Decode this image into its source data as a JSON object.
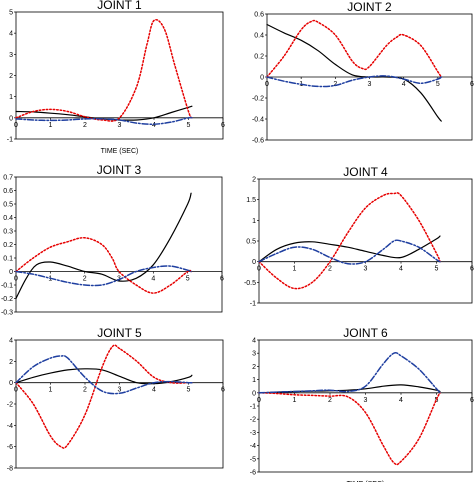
{
  "chart_data": [
    {
      "type": "line",
      "title": "JOINT 1",
      "xlabel": "TIME (SEC)",
      "ylabel": "",
      "xlim": [
        0,
        6
      ],
      "ylim": [
        -1,
        5
      ],
      "xticks": [
        0,
        1,
        2,
        3,
        4,
        5,
        6
      ],
      "xtick_labels": [
        "0",
        "1",
        "2",
        "3",
        "4",
        "5",
        "6"
      ],
      "yticks": [
        -1,
        0,
        1,
        2,
        3,
        4,
        5
      ],
      "ytick_labels": [
        "-1",
        "0",
        "1",
        "2",
        "3",
        "4",
        "5"
      ],
      "grid": false,
      "series": [
        {
          "style": "solid",
          "color": "#000000",
          "x": [
            0,
            0.5,
            1,
            1.5,
            2,
            2.5,
            3,
            3.5,
            4,
            4.5,
            5,
            5.1
          ],
          "y": [
            0.3,
            0.28,
            0.22,
            0.15,
            0.05,
            -0.05,
            -0.1,
            -0.1,
            0,
            0.25,
            0.5,
            0.55
          ]
        },
        {
          "style": "dotted",
          "color": "#e60000",
          "x": [
            0,
            0.5,
            1,
            1.5,
            2,
            2.5,
            3,
            3.5,
            3.8,
            4,
            4.3,
            4.6,
            5,
            5.1
          ],
          "y": [
            0,
            0.3,
            0.4,
            0.3,
            0.05,
            -0.1,
            0,
            1.5,
            3.5,
            4.6,
            4.2,
            2.5,
            0.3,
            0
          ]
        },
        {
          "style": "dashdot",
          "color": "#1f3fa0",
          "x": [
            0,
            0.5,
            1,
            1.5,
            2,
            2.5,
            3,
            3.5,
            4,
            4.5,
            5,
            5.1
          ],
          "y": [
            -0.05,
            -0.1,
            -0.12,
            -0.1,
            -0.05,
            -0.05,
            -0.1,
            -0.25,
            -0.3,
            -0.2,
            0,
            0
          ]
        }
      ]
    },
    {
      "type": "line",
      "title": "JOINT 2",
      "xlabel": "",
      "ylabel": "",
      "xlim": [
        0,
        6
      ],
      "ylim": [
        -0.6,
        0.6
      ],
      "xticks": [
        0,
        1,
        2,
        3,
        4,
        5,
        6
      ],
      "xtick_labels": [
        "0",
        "1",
        "2",
        "3",
        "4",
        "5",
        "6"
      ],
      "yticks": [
        -0.6,
        -0.4,
        -0.2,
        0,
        0.2,
        0.4,
        0.6
      ],
      "ytick_labels": [
        "-0.6",
        "-0.4",
        "-0.2",
        "0",
        "0.2",
        "0.4",
        "0.6"
      ],
      "grid": false,
      "series": [
        {
          "style": "solid",
          "color": "#000000",
          "x": [
            0,
            0.5,
            1,
            1.5,
            2,
            2.5,
            3,
            3.5,
            4,
            4.5,
            5,
            5.1
          ],
          "y": [
            0.5,
            0.42,
            0.35,
            0.25,
            0.12,
            0.02,
            0,
            0,
            -0.02,
            -0.15,
            -0.38,
            -0.42
          ]
        },
        {
          "style": "dotted",
          "color": "#e60000",
          "x": [
            0,
            0.5,
            1,
            1.3,
            1.5,
            2,
            2.5,
            2.8,
            3,
            3.5,
            3.8,
            4,
            4.5,
            5,
            5.1
          ],
          "y": [
            0,
            0.2,
            0.45,
            0.53,
            0.52,
            0.4,
            0.15,
            0.08,
            0.1,
            0.3,
            0.38,
            0.4,
            0.3,
            0.05,
            0
          ]
        },
        {
          "style": "dashdot",
          "color": "#1f3fa0",
          "x": [
            0,
            0.5,
            1,
            1.5,
            2,
            2.5,
            3,
            3.5,
            4,
            4.5,
            5,
            5.1
          ],
          "y": [
            0,
            -0.04,
            -0.07,
            -0.09,
            -0.08,
            -0.03,
            0,
            0.01,
            -0.02,
            -0.06,
            -0.02,
            0
          ]
        }
      ]
    },
    {
      "type": "line",
      "title": "JOINT 3",
      "xlabel": "",
      "ylabel": "",
      "xlim": [
        0,
        6
      ],
      "ylim": [
        -0.3,
        0.7
      ],
      "xticks": [
        0,
        1,
        2,
        3,
        4,
        5,
        6
      ],
      "xtick_labels": [
        "0",
        "1",
        "2",
        "3",
        "4",
        "5",
        "6"
      ],
      "yticks": [
        -0.3,
        -0.2,
        -0.1,
        0,
        0.1,
        0.2,
        0.3,
        0.4,
        0.5,
        0.6,
        0.7
      ],
      "ytick_labels": [
        "-0.3",
        "-0.2",
        "-0.1",
        "0",
        "0.1",
        "0.2",
        "0.3",
        "0.4",
        "0.5",
        "0.6",
        "0.7"
      ],
      "grid": false,
      "series": [
        {
          "style": "solid",
          "color": "#000000",
          "x": [
            0,
            0.3,
            0.6,
            1,
            1.5,
            2,
            2.5,
            3,
            3.5,
            4,
            4.5,
            5,
            5.1
          ],
          "y": [
            -0.2,
            -0.05,
            0.05,
            0.07,
            0.04,
            0,
            -0.02,
            -0.07,
            -0.05,
            0.05,
            0.25,
            0.5,
            0.58
          ]
        },
        {
          "style": "dotted",
          "color": "#e60000",
          "x": [
            0,
            0.5,
            1,
            1.5,
            2,
            2.5,
            2.8,
            3,
            3.5,
            4,
            4.5,
            5,
            5.1
          ],
          "y": [
            0,
            0.1,
            0.18,
            0.22,
            0.25,
            0.2,
            0.1,
            0,
            -0.1,
            -0.16,
            -0.1,
            0,
            0
          ]
        },
        {
          "style": "dashdot",
          "color": "#1f3fa0",
          "x": [
            0,
            0.5,
            1,
            1.5,
            2,
            2.5,
            3,
            3.5,
            4,
            4.5,
            5,
            5.1
          ],
          "y": [
            0,
            -0.02,
            -0.05,
            -0.08,
            -0.1,
            -0.1,
            -0.06,
            0,
            0.03,
            0.04,
            0.01,
            0
          ]
        }
      ]
    },
    {
      "type": "line",
      "title": "JOINT 4",
      "xlabel": "",
      "ylabel": "",
      "xlim": [
        0,
        6
      ],
      "ylim": [
        -1,
        2
      ],
      "xticks": [
        0,
        1,
        2,
        3,
        4,
        5,
        6
      ],
      "xtick_labels": [
        "0",
        "1",
        "2",
        "3",
        "4",
        "5",
        "6"
      ],
      "yticks": [
        -1,
        -0.5,
        0,
        0.5,
        1,
        1.5,
        2
      ],
      "ytick_labels": [
        "-1",
        "-0.5",
        "0",
        "0.5",
        "1",
        "1.5",
        "2"
      ],
      "grid": false,
      "series": [
        {
          "style": "solid",
          "color": "#000000",
          "x": [
            0,
            0.5,
            1,
            1.5,
            2,
            2.5,
            3,
            3.5,
            4,
            4.5,
            5,
            5.1
          ],
          "y": [
            0,
            0.3,
            0.45,
            0.48,
            0.42,
            0.35,
            0.25,
            0.15,
            0.1,
            0.3,
            0.55,
            0.62
          ]
        },
        {
          "style": "dotted",
          "color": "#e60000",
          "x": [
            0,
            0.5,
            1,
            1.5,
            2,
            2.5,
            3,
            3.5,
            3.8,
            4,
            4.5,
            5,
            5.1
          ],
          "y": [
            0,
            -0.4,
            -0.65,
            -0.5,
            0,
            0.7,
            1.3,
            1.6,
            1.65,
            1.6,
            1.0,
            0.2,
            0
          ]
        },
        {
          "style": "dashdot",
          "color": "#1f3fa0",
          "x": [
            0,
            0.5,
            1,
            1.5,
            2,
            2.5,
            3,
            3.5,
            3.8,
            4,
            4.5,
            5,
            5.1
          ],
          "y": [
            0,
            0.2,
            0.35,
            0.3,
            0.1,
            -0.05,
            0,
            0.3,
            0.5,
            0.5,
            0.35,
            0.05,
            0
          ]
        }
      ]
    },
    {
      "type": "line",
      "title": "JOINT 5",
      "xlabel": "",
      "ylabel": "",
      "xlim": [
        0,
        6
      ],
      "ylim": [
        -8,
        4
      ],
      "xticks": [
        0,
        1,
        2,
        3,
        4,
        5,
        6
      ],
      "xtick_labels": [
        "0",
        "1",
        "2",
        "3",
        "4",
        "5",
        "6"
      ],
      "yticks": [
        -8,
        -6,
        -4,
        -2,
        0,
        2,
        4
      ],
      "ytick_labels": [
        "-8",
        "-6",
        "-4",
        "-2",
        "0",
        "2",
        "4"
      ],
      "grid": false,
      "series": [
        {
          "style": "solid",
          "color": "#000000",
          "x": [
            0,
            0.5,
            1,
            1.5,
            2,
            2.5,
            3,
            3.5,
            4,
            4.5,
            5,
            5.1
          ],
          "y": [
            0,
            0.5,
            0.9,
            1.2,
            1.3,
            1.2,
            0.6,
            0,
            -0.1,
            0.1,
            0.5,
            0.7
          ]
        },
        {
          "style": "dotted",
          "color": "#e60000",
          "x": [
            0,
            0.5,
            1,
            1.3,
            1.5,
            2,
            2.5,
            2.8,
            3,
            3.5,
            4,
            4.5,
            5,
            5.1
          ],
          "y": [
            0,
            -2,
            -5,
            -6,
            -5.8,
            -3,
            1.5,
            3.4,
            3.2,
            2,
            0.5,
            0,
            0,
            0
          ]
        },
        {
          "style": "dashdot",
          "color": "#1f3fa0",
          "x": [
            0,
            0.5,
            1,
            1.3,
            1.5,
            2,
            2.5,
            3,
            3.5,
            4,
            4.5,
            5,
            5.1
          ],
          "y": [
            0,
            1.5,
            2.3,
            2.5,
            2.3,
            0.5,
            -0.8,
            -1.0,
            -0.5,
            0,
            0.1,
            0,
            0
          ]
        }
      ]
    },
    {
      "type": "line",
      "title": "JOINT 6",
      "xlabel": "TIME (SEC)",
      "ylabel": "",
      "xlim": [
        0,
        6
      ],
      "ylim": [
        -6,
        4
      ],
      "xticks": [
        0,
        1,
        2,
        3,
        4,
        5,
        6
      ],
      "xtick_labels": [
        "0",
        "1",
        "2",
        "3",
        "4",
        "5",
        "6"
      ],
      "yticks": [
        -6,
        -5,
        -4,
        -3,
        -2,
        -1,
        0,
        1,
        2,
        3,
        4
      ],
      "ytick_labels": [
        "-6",
        "-5",
        "-4",
        "-3",
        "-2",
        "-1",
        "0",
        "1",
        "2",
        "3",
        "4"
      ],
      "grid": false,
      "series": [
        {
          "style": "solid",
          "color": "#000000",
          "x": [
            0,
            0.5,
            1,
            1.5,
            2,
            2.5,
            3,
            3.5,
            4,
            4.5,
            5,
            5.1
          ],
          "y": [
            0,
            0.05,
            0.1,
            0.12,
            0.15,
            0.2,
            0.3,
            0.5,
            0.6,
            0.45,
            0.2,
            0.1
          ]
        },
        {
          "style": "dotted",
          "color": "#e60000",
          "x": [
            0,
            0.5,
            1,
            1.5,
            2,
            2.5,
            3,
            3.5,
            3.8,
            4,
            4.5,
            5,
            5.1
          ],
          "y": [
            0,
            -0.05,
            -0.15,
            -0.2,
            -0.25,
            -0.3,
            -1.5,
            -4,
            -5.3,
            -5.2,
            -3.5,
            -0.5,
            0
          ]
        },
        {
          "style": "dashdot",
          "color": "#1f3fa0",
          "x": [
            0,
            0.5,
            1,
            1.5,
            2,
            2.5,
            3,
            3.5,
            3.8,
            4,
            4.5,
            5,
            5.1
          ],
          "y": [
            0,
            0.05,
            0.1,
            0.15,
            0.2,
            0.1,
            0.5,
            2.2,
            3.0,
            2.8,
            1.8,
            0.3,
            0
          ]
        }
      ]
    }
  ]
}
